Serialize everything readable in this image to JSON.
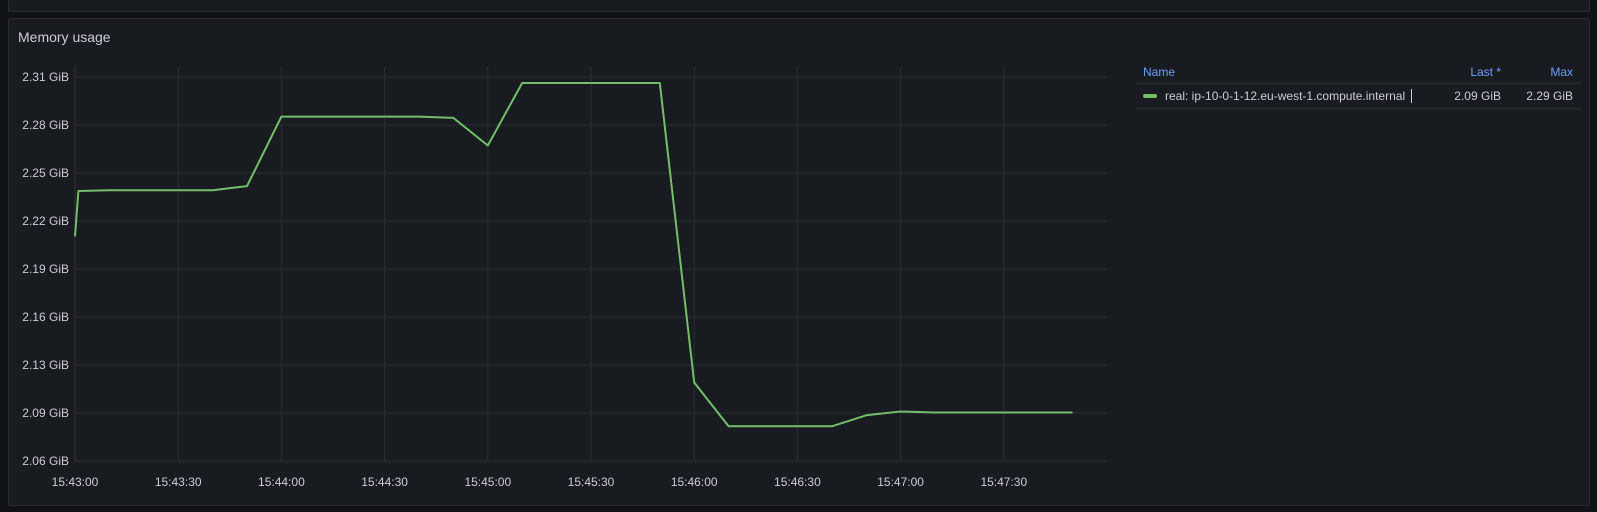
{
  "panel": {
    "title": "Memory usage"
  },
  "legend": {
    "headers": {
      "name": "Name",
      "last": "Last *",
      "max": "Max"
    },
    "rows": [
      {
        "name": "real: ip-10-0-1-12.eu-west-1.compute.internal",
        "last": "2.09 GiB",
        "max": "2.29 GiB",
        "color": "#73bf69"
      }
    ]
  },
  "chart_data": {
    "type": "line",
    "title": "Memory usage",
    "xlabel": "",
    "ylabel": "",
    "x_ticks": [
      "15:43:00",
      "15:43:30",
      "15:44:00",
      "15:44:30",
      "15:45:00",
      "15:45:30",
      "15:46:00",
      "15:46:30",
      "15:47:00",
      "15:47:30"
    ],
    "y_ticks": [
      "2.31 GiB",
      "2.28 GiB",
      "2.25 GiB",
      "2.22 GiB",
      "2.19 GiB",
      "2.16 GiB",
      "2.13 GiB",
      "2.09 GiB",
      "2.06 GiB"
    ],
    "ylim": [
      2.056,
      2.3
    ],
    "grid": true,
    "legend_position": "right",
    "series": [
      {
        "name": "real: ip-10-0-1-12.eu-west-1.compute.internal",
        "color": "#73bf69",
        "points": [
          {
            "t": "15:43:00",
            "v": 2.195
          },
          {
            "t": "15:43:01",
            "v": 2.223
          },
          {
            "t": "15:43:10",
            "v": 2.2235
          },
          {
            "t": "15:43:40",
            "v": 2.2235
          },
          {
            "t": "15:43:50",
            "v": 2.226
          },
          {
            "t": "15:44:00",
            "v": 2.2688
          },
          {
            "t": "15:44:40",
            "v": 2.2688
          },
          {
            "t": "15:44:50",
            "v": 2.268
          },
          {
            "t": "15:45:00",
            "v": 2.251
          },
          {
            "t": "15:45:10",
            "v": 2.2895
          },
          {
            "t": "15:45:50",
            "v": 2.2895
          },
          {
            "t": "15:46:00",
            "v": 2.105
          },
          {
            "t": "15:46:10",
            "v": 2.078
          },
          {
            "t": "15:46:40",
            "v": 2.078
          },
          {
            "t": "15:46:50",
            "v": 2.0848
          },
          {
            "t": "15:47:00",
            "v": 2.0871
          },
          {
            "t": "15:47:10",
            "v": 2.0865
          },
          {
            "t": "15:47:50",
            "v": 2.0865
          }
        ]
      }
    ]
  }
}
